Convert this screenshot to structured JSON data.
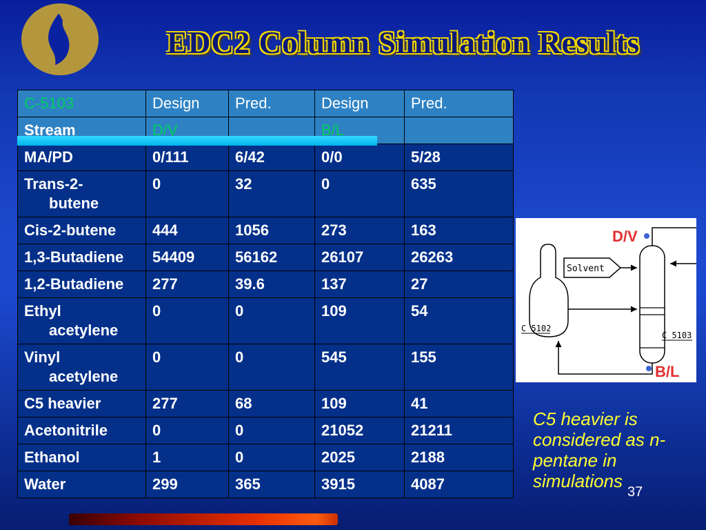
{
  "slide": {
    "title": "EDC2 Column Simulation Results",
    "page_number": "37",
    "note": "C5 heavier is considered as n-pentane in simulations"
  },
  "table": {
    "rows": [
      {
        "cells": [
          "C-5103",
          "Design",
          "Pred.",
          "Design",
          "Pred."
        ],
        "header": true,
        "green": [
          0
        ],
        "bold": []
      },
      {
        "cells": [
          "Stream",
          "D/V",
          "",
          "B/L",
          ""
        ],
        "header": true,
        "green": [
          1,
          3
        ],
        "bold": [
          0
        ]
      },
      {
        "cells": [
          "MA/PD",
          "0/111",
          "6/42",
          "0/0",
          "5/28"
        ]
      },
      {
        "cells": [
          "Trans-2-\nbutene",
          "0",
          "32",
          "0",
          "635"
        ]
      },
      {
        "cells": [
          "Cis-2-butene",
          "444",
          "1056",
          "273",
          "163"
        ]
      },
      {
        "cells": [
          "1,3-Butadiene",
          "54409",
          "56162",
          "26107",
          "26263"
        ]
      },
      {
        "cells": [
          "1,2-Butadiene",
          "277",
          "39.6",
          "137",
          "27"
        ]
      },
      {
        "cells": [
          "Ethyl\nacetylene",
          "0",
          "0",
          "109",
          "54"
        ]
      },
      {
        "cells": [
          "Vinyl\nacetylene",
          "0",
          "0",
          "545",
          "155"
        ]
      },
      {
        "cells": [
          "C5 heavier",
          "277",
          "68",
          "109",
          "41"
        ]
      },
      {
        "cells": [
          "Acetonitrile",
          "0",
          "0",
          "21052",
          "21211"
        ]
      },
      {
        "cells": [
          "Ethanol",
          "1",
          "0",
          "2025",
          "2188"
        ]
      },
      {
        "cells": [
          "Water",
          "299",
          "365",
          "3915",
          "4087"
        ]
      }
    ]
  },
  "diagram": {
    "solvent": "Solvent",
    "left_column": "C 5102",
    "right_column": "C 5103",
    "top_stream": "D/V",
    "bottom_stream": "B/L"
  },
  "colors": {
    "table_header_bg": "#2e82c4",
    "table_cell_bg": "#04308a",
    "green_text": "#00cf5e",
    "title_text": "#0b1878",
    "title_glow": "#f2d800",
    "note_text": "#ffff33",
    "stream_label_red": "#e03030",
    "cyan_strip": "#00b4ec",
    "logo_gold": "#b4973d"
  }
}
